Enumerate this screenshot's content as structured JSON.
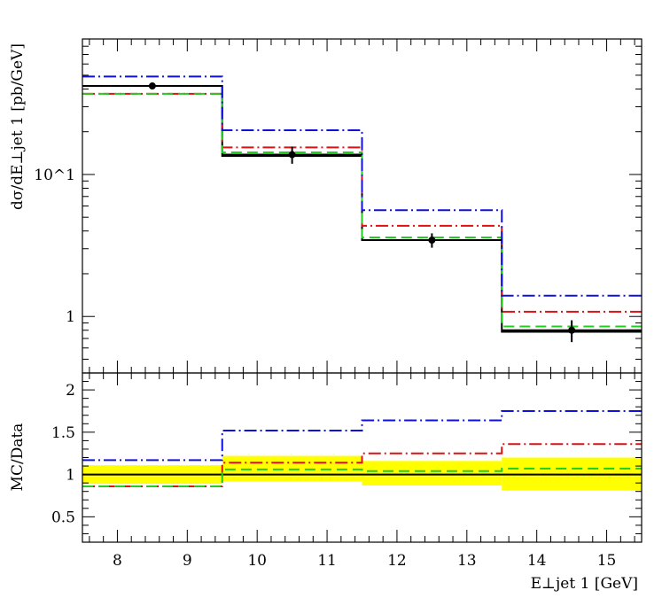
{
  "chart_data": [
    {
      "type": "line",
      "panel": "main",
      "ylabel": "dσ/dE⊥jet 1 [pb/GeV]",
      "xlim": [
        7.5,
        15.5
      ],
      "ylim": [
        0.4,
        90
      ],
      "yscale": "log",
      "ytick_labels": [
        {
          "value": 1,
          "label": "1"
        },
        {
          "value": 10,
          "label": "10^1"
        }
      ],
      "bin_edges": [
        7.5,
        9.5,
        11.5,
        13.5,
        15.5
      ],
      "data": {
        "x": [
          8.5,
          10.5,
          12.5,
          14.5
        ],
        "y": [
          42,
          13.8,
          3.45,
          0.8
        ],
        "yerr": [
          1.5,
          1.9,
          0.4,
          0.14
        ],
        "color": "#000000"
      },
      "series": [
        {
          "values": [
            42,
            13.5,
            3.45,
            0.78
          ],
          "color": "#000000",
          "style": "solid"
        },
        {
          "values": [
            37,
            15.5,
            4.35,
            1.08
          ],
          "color": "#dd1111",
          "style": "mixed"
        },
        {
          "values": [
            37,
            14.3,
            3.6,
            0.85
          ],
          "color": "#22cc22",
          "style": "dashed"
        },
        {
          "values": [
            49,
            20.5,
            5.6,
            1.4
          ],
          "color": "#1010dd",
          "style": "mixed"
        }
      ]
    },
    {
      "type": "line",
      "panel": "ratio",
      "ylabel": "MC/Data",
      "xlabel": "E⊥jet 1 [GeV]",
      "xlim": [
        7.5,
        15.5
      ],
      "ylim": [
        0.2,
        2.2
      ],
      "ytick_labels": [
        {
          "value": 0.5,
          "label": "0.5"
        },
        {
          "value": 1,
          "label": "1"
        },
        {
          "value": 1.5,
          "label": "1.5"
        },
        {
          "value": 2,
          "label": "2"
        }
      ],
      "xtick_labels": [
        {
          "value": 8,
          "label": "8"
        },
        {
          "value": 9,
          "label": "9"
        },
        {
          "value": 10,
          "label": "10"
        },
        {
          "value": 11,
          "label": "11"
        },
        {
          "value": 12,
          "label": "12"
        },
        {
          "value": 13,
          "label": "13"
        },
        {
          "value": 14,
          "label": "14"
        },
        {
          "value": 15,
          "label": "15"
        }
      ],
      "bin_edges": [
        7.5,
        9.5,
        11.5,
        13.5,
        15.5
      ],
      "band": {
        "low": [
          0.89,
          0.92,
          0.87,
          0.81
        ],
        "high": [
          1.11,
          1.22,
          1.16,
          1.2
        ],
        "color": "#ffff00"
      },
      "series": [
        {
          "values": [
            1.0,
            1.0,
            1.0,
            1.0
          ],
          "color": "#000000",
          "style": "solid"
        },
        {
          "values": [
            0.86,
            1.14,
            1.25,
            1.36
          ],
          "color": "#dd1111",
          "style": "mixed"
        },
        {
          "values": [
            0.86,
            1.06,
            1.04,
            1.07
          ],
          "color": "#22cc22",
          "style": "dashed"
        },
        {
          "values": [
            1.17,
            1.52,
            1.64,
            1.75
          ],
          "color": "#1010dd",
          "style": "mixed"
        }
      ]
    }
  ]
}
